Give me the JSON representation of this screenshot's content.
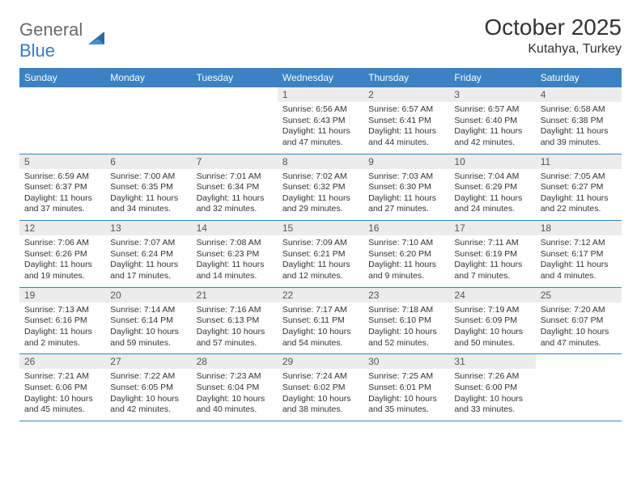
{
  "brand": {
    "name_a": "General",
    "name_b": "Blue"
  },
  "title": "October 2025",
  "location": "Kutahya, Turkey",
  "colors": {
    "header_bg": "#3a82c4",
    "band_bg": "#ececec",
    "rule": "#3a82c4",
    "text": "#333333",
    "logo_gray": "#6a6a6a",
    "logo_blue": "#3a7ab8"
  },
  "weekdays": [
    "Sunday",
    "Monday",
    "Tuesday",
    "Wednesday",
    "Thursday",
    "Friday",
    "Saturday"
  ],
  "weeks": [
    [
      {
        "n": "",
        "sunrise": "",
        "sunset": "",
        "daylight": ""
      },
      {
        "n": "",
        "sunrise": "",
        "sunset": "",
        "daylight": ""
      },
      {
        "n": "",
        "sunrise": "",
        "sunset": "",
        "daylight": ""
      },
      {
        "n": "1",
        "sunrise": "6:56 AM",
        "sunset": "6:43 PM",
        "daylight": "11 hours and 47 minutes."
      },
      {
        "n": "2",
        "sunrise": "6:57 AM",
        "sunset": "6:41 PM",
        "daylight": "11 hours and 44 minutes."
      },
      {
        "n": "3",
        "sunrise": "6:57 AM",
        "sunset": "6:40 PM",
        "daylight": "11 hours and 42 minutes."
      },
      {
        "n": "4",
        "sunrise": "6:58 AM",
        "sunset": "6:38 PM",
        "daylight": "11 hours and 39 minutes."
      }
    ],
    [
      {
        "n": "5",
        "sunrise": "6:59 AM",
        "sunset": "6:37 PM",
        "daylight": "11 hours and 37 minutes."
      },
      {
        "n": "6",
        "sunrise": "7:00 AM",
        "sunset": "6:35 PM",
        "daylight": "11 hours and 34 minutes."
      },
      {
        "n": "7",
        "sunrise": "7:01 AM",
        "sunset": "6:34 PM",
        "daylight": "11 hours and 32 minutes."
      },
      {
        "n": "8",
        "sunrise": "7:02 AM",
        "sunset": "6:32 PM",
        "daylight": "11 hours and 29 minutes."
      },
      {
        "n": "9",
        "sunrise": "7:03 AM",
        "sunset": "6:30 PM",
        "daylight": "11 hours and 27 minutes."
      },
      {
        "n": "10",
        "sunrise": "7:04 AM",
        "sunset": "6:29 PM",
        "daylight": "11 hours and 24 minutes."
      },
      {
        "n": "11",
        "sunrise": "7:05 AM",
        "sunset": "6:27 PM",
        "daylight": "11 hours and 22 minutes."
      }
    ],
    [
      {
        "n": "12",
        "sunrise": "7:06 AM",
        "sunset": "6:26 PM",
        "daylight": "11 hours and 19 minutes."
      },
      {
        "n": "13",
        "sunrise": "7:07 AM",
        "sunset": "6:24 PM",
        "daylight": "11 hours and 17 minutes."
      },
      {
        "n": "14",
        "sunrise": "7:08 AM",
        "sunset": "6:23 PM",
        "daylight": "11 hours and 14 minutes."
      },
      {
        "n": "15",
        "sunrise": "7:09 AM",
        "sunset": "6:21 PM",
        "daylight": "11 hours and 12 minutes."
      },
      {
        "n": "16",
        "sunrise": "7:10 AM",
        "sunset": "6:20 PM",
        "daylight": "11 hours and 9 minutes."
      },
      {
        "n": "17",
        "sunrise": "7:11 AM",
        "sunset": "6:19 PM",
        "daylight": "11 hours and 7 minutes."
      },
      {
        "n": "18",
        "sunrise": "7:12 AM",
        "sunset": "6:17 PM",
        "daylight": "11 hours and 4 minutes."
      }
    ],
    [
      {
        "n": "19",
        "sunrise": "7:13 AM",
        "sunset": "6:16 PM",
        "daylight": "11 hours and 2 minutes."
      },
      {
        "n": "20",
        "sunrise": "7:14 AM",
        "sunset": "6:14 PM",
        "daylight": "10 hours and 59 minutes."
      },
      {
        "n": "21",
        "sunrise": "7:16 AM",
        "sunset": "6:13 PM",
        "daylight": "10 hours and 57 minutes."
      },
      {
        "n": "22",
        "sunrise": "7:17 AM",
        "sunset": "6:11 PM",
        "daylight": "10 hours and 54 minutes."
      },
      {
        "n": "23",
        "sunrise": "7:18 AM",
        "sunset": "6:10 PM",
        "daylight": "10 hours and 52 minutes."
      },
      {
        "n": "24",
        "sunrise": "7:19 AM",
        "sunset": "6:09 PM",
        "daylight": "10 hours and 50 minutes."
      },
      {
        "n": "25",
        "sunrise": "7:20 AM",
        "sunset": "6:07 PM",
        "daylight": "10 hours and 47 minutes."
      }
    ],
    [
      {
        "n": "26",
        "sunrise": "7:21 AM",
        "sunset": "6:06 PM",
        "daylight": "10 hours and 45 minutes."
      },
      {
        "n": "27",
        "sunrise": "7:22 AM",
        "sunset": "6:05 PM",
        "daylight": "10 hours and 42 minutes."
      },
      {
        "n": "28",
        "sunrise": "7:23 AM",
        "sunset": "6:04 PM",
        "daylight": "10 hours and 40 minutes."
      },
      {
        "n": "29",
        "sunrise": "7:24 AM",
        "sunset": "6:02 PM",
        "daylight": "10 hours and 38 minutes."
      },
      {
        "n": "30",
        "sunrise": "7:25 AM",
        "sunset": "6:01 PM",
        "daylight": "10 hours and 35 minutes."
      },
      {
        "n": "31",
        "sunrise": "7:26 AM",
        "sunset": "6:00 PM",
        "daylight": "10 hours and 33 minutes."
      },
      {
        "n": "",
        "sunrise": "",
        "sunset": "",
        "daylight": ""
      }
    ]
  ]
}
